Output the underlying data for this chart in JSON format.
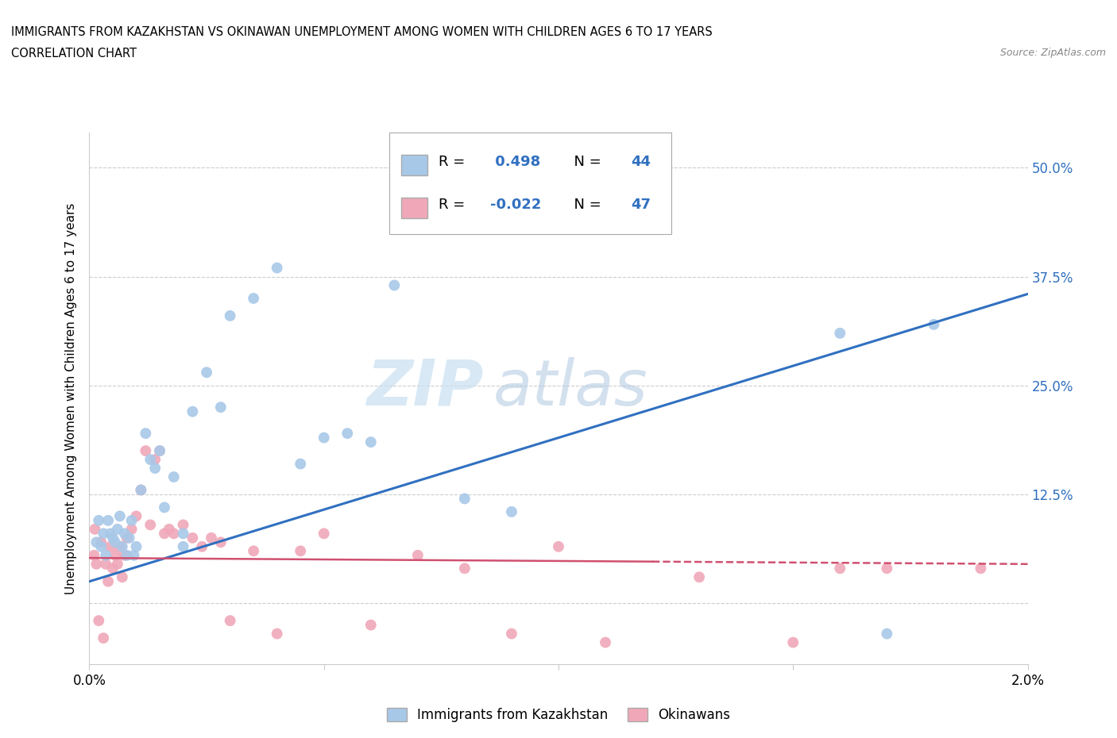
{
  "title_line1": "IMMIGRANTS FROM KAZAKHSTAN VS OKINAWAN UNEMPLOYMENT AMONG WOMEN WITH CHILDREN AGES 6 TO 17 YEARS",
  "title_line2": "CORRELATION CHART",
  "source_text": "Source: ZipAtlas.com",
  "ylabel": "Unemployment Among Women with Children Ages 6 to 17 years",
  "xlim": [
    0.0,
    0.02
  ],
  "ylim": [
    -0.07,
    0.54
  ],
  "yticks": [
    0.0,
    0.125,
    0.25,
    0.375,
    0.5
  ],
  "ytick_labels": [
    "",
    "12.5%",
    "25.0%",
    "37.5%",
    "50.0%"
  ],
  "xticks": [
    0.0,
    0.005,
    0.01,
    0.015,
    0.02
  ],
  "xtick_labels": [
    "0.0%",
    "",
    "",
    "",
    "2.0%"
  ],
  "blue_R": 0.498,
  "blue_N": 44,
  "pink_R": -0.022,
  "pink_N": 47,
  "blue_color": "#a8c8e8",
  "pink_color": "#f0a8b8",
  "blue_line_color": "#3070c0",
  "pink_line_color": "#d05070",
  "blue_x": [
    0.00015,
    0.0002,
    0.00025,
    0.0003,
    0.00035,
    0.0004,
    0.00045,
    0.0005,
    0.00055,
    0.0006,
    0.00065,
    0.0007,
    0.00075,
    0.0008,
    0.00085,
    0.0009,
    0.00095,
    0.001,
    0.0011,
    0.0012,
    0.0013,
    0.0014,
    0.0015,
    0.0016,
    0.0018,
    0.002,
    0.002,
    0.0022,
    0.0025,
    0.0028,
    0.003,
    0.0035,
    0.004,
    0.0045,
    0.005,
    0.0055,
    0.006,
    0.0065,
    0.008,
    0.009,
    0.012,
    0.016,
    0.017,
    0.018
  ],
  "blue_y": [
    0.07,
    0.095,
    0.065,
    0.08,
    0.055,
    0.095,
    0.08,
    0.075,
    0.07,
    0.085,
    0.1,
    0.065,
    0.08,
    0.055,
    0.075,
    0.095,
    0.055,
    0.065,
    0.13,
    0.195,
    0.165,
    0.155,
    0.175,
    0.11,
    0.145,
    0.065,
    0.08,
    0.22,
    0.265,
    0.225,
    0.33,
    0.35,
    0.385,
    0.16,
    0.19,
    0.195,
    0.185,
    0.365,
    0.12,
    0.105,
    0.43,
    0.31,
    -0.035,
    0.32
  ],
  "pink_x": [
    0.0001,
    0.00012,
    0.00015,
    0.0002,
    0.00025,
    0.0003,
    0.00035,
    0.0004,
    0.00045,
    0.0005,
    0.00055,
    0.0006,
    0.00065,
    0.0007,
    0.00075,
    0.0008,
    0.0009,
    0.001,
    0.0011,
    0.0012,
    0.0013,
    0.0014,
    0.0015,
    0.0016,
    0.0017,
    0.0018,
    0.002,
    0.0022,
    0.0024,
    0.0026,
    0.0028,
    0.003,
    0.0035,
    0.004,
    0.0045,
    0.005,
    0.006,
    0.007,
    0.008,
    0.009,
    0.01,
    0.011,
    0.013,
    0.015,
    0.016,
    0.017,
    0.019
  ],
  "pink_y": [
    0.055,
    0.085,
    0.045,
    -0.02,
    0.07,
    -0.04,
    0.045,
    0.025,
    0.065,
    0.04,
    0.055,
    0.045,
    0.065,
    0.03,
    0.055,
    0.075,
    0.085,
    0.1,
    0.13,
    0.175,
    0.09,
    0.165,
    0.175,
    0.08,
    0.085,
    0.08,
    0.09,
    0.075,
    0.065,
    0.075,
    0.07,
    -0.02,
    0.06,
    -0.035,
    0.06,
    0.08,
    -0.025,
    0.055,
    0.04,
    -0.035,
    0.065,
    -0.045,
    0.03,
    -0.045,
    0.04,
    0.04,
    0.04
  ],
  "blue_trendline_x": [
    0.0,
    0.02
  ],
  "blue_trendline_y": [
    0.025,
    0.355
  ],
  "pink_trendline_x": [
    0.0,
    0.02
  ],
  "pink_trendline_y": [
    0.052,
    0.045
  ]
}
